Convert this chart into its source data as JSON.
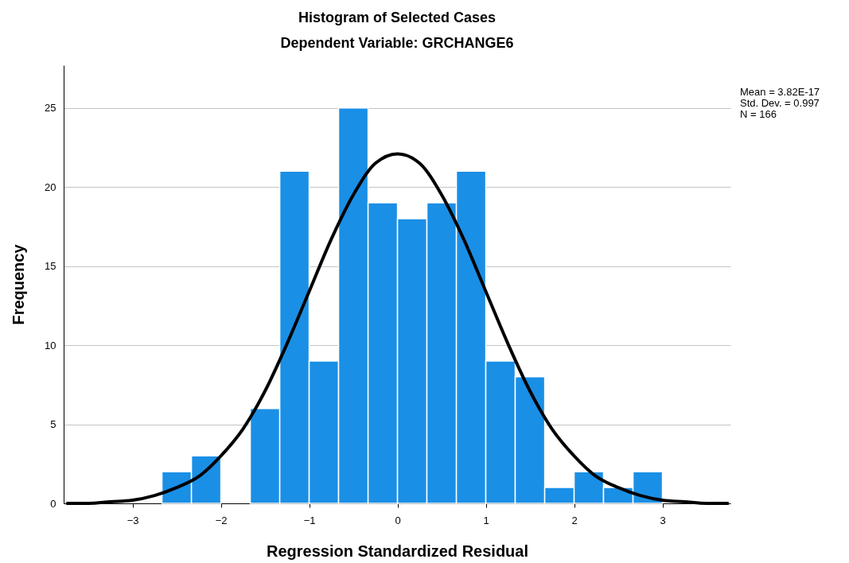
{
  "chart_data": {
    "type": "histogram",
    "title": "Histogram of Selected Cases",
    "subtitle": "Dependent Variable: GRCHANGE6",
    "xlabel": "Regression Standardized Residual",
    "ylabel": "Frequency",
    "bins": [
      -2.667,
      -2.333,
      -2,
      -1.667,
      -1.333,
      -1,
      -0.667,
      -0.333,
      0,
      0.333,
      0.667,
      1,
      1.333,
      1.667,
      2,
      2.333,
      2.667,
      3
    ],
    "values": [
      2,
      3,
      0,
      6,
      21,
      9,
      25,
      19,
      18,
      19,
      21,
      9,
      8,
      1,
      2,
      1,
      2
    ],
    "color": "#1a8fe6",
    "series": [
      {
        "type": "line",
        "color": "#000000",
        "x": [
          -3.75,
          -3.5,
          -3.25,
          -3,
          -2.75,
          -2.5,
          -2.25,
          -2,
          -1.75,
          -1.5,
          -1.25,
          -1,
          -0.75,
          -0.5,
          -0.25,
          0,
          0.25,
          0.5,
          0.75,
          1,
          1.25,
          1.5,
          1.75,
          2,
          2.25,
          2.5,
          2.75,
          3,
          3.25,
          3.5,
          3.75
        ],
        "values": [
          0.0,
          0.0,
          0.1,
          0.2,
          0.5,
          1.0,
          1.7,
          3.0,
          4.7,
          7.1,
          10.1,
          13.4,
          16.7,
          19.5,
          21.5,
          22.1,
          21.5,
          19.5,
          16.7,
          13.4,
          10.1,
          7.1,
          4.7,
          3.0,
          1.7,
          1.0,
          0.5,
          0.2,
          0.1,
          0.0,
          0.0
        ]
      }
    ],
    "xlim": [
      -3.78,
      3.77
    ],
    "ylim": [
      0,
      27.7
    ],
    "xticks": [
      -3,
      -2,
      -1,
      0,
      1,
      2,
      3
    ],
    "yticks": [
      0,
      5,
      10,
      15,
      20,
      25
    ],
    "grid": "y",
    "annotations": [
      "Mean = 3.82E-17",
      "Std. Dev. = 0.997",
      "N = 166"
    ]
  }
}
